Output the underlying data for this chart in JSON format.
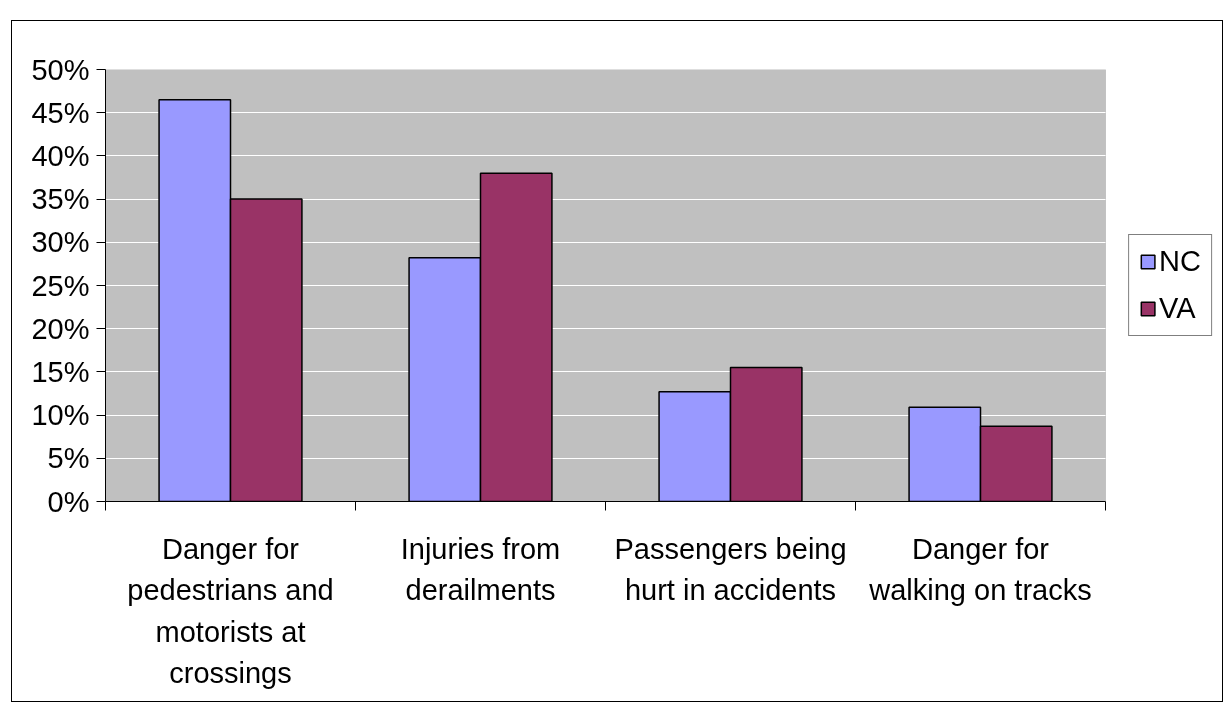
{
  "chart_data": {
    "type": "bar",
    "categories": [
      "Danger for pedestrians and motorists at crossings",
      "Injuries from derailments",
      "Passengers being hurt in accidents",
      "Danger for walking on tracks"
    ],
    "series": [
      {
        "name": "NC",
        "color": "#9999ff",
        "values": [
          46.5,
          28.2,
          12.7,
          10.9
        ]
      },
      {
        "name": "VA",
        "color": "#993366",
        "values": [
          35.0,
          38.0,
          15.5,
          8.7
        ]
      }
    ],
    "ylim": [
      0,
      50
    ],
    "yticks": [
      {
        "value": 0,
        "label": "0%"
      },
      {
        "value": 5,
        "label": "5%"
      },
      {
        "value": 10,
        "label": "10%"
      },
      {
        "value": 15,
        "label": "15%"
      },
      {
        "value": 20,
        "label": "20%"
      },
      {
        "value": 25,
        "label": "25%"
      },
      {
        "value": 30,
        "label": "30%"
      },
      {
        "value": 35,
        "label": "35%"
      },
      {
        "value": 40,
        "label": "40%"
      },
      {
        "value": 45,
        "label": "45%"
      },
      {
        "value": 50,
        "label": "50%"
      }
    ],
    "grid": "y",
    "legend": "right"
  }
}
